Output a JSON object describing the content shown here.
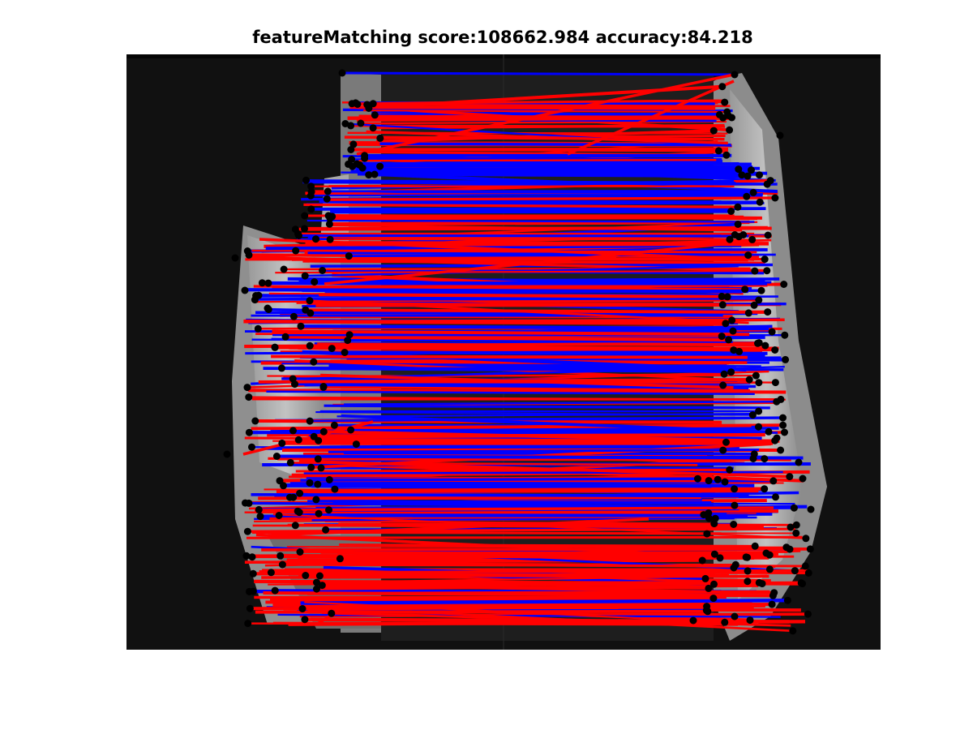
{
  "figure": {
    "title": "featureMatching score:108662.984 accuracy:84.218"
  },
  "colors": {
    "inlier_match": "#0000ff",
    "outlier_match": "#ff0000",
    "keypoint": "#000000",
    "background": "#ffffff",
    "image_dark": "#111111"
  },
  "icons": {
    "keypoint_marker": "filled-circle"
  }
}
